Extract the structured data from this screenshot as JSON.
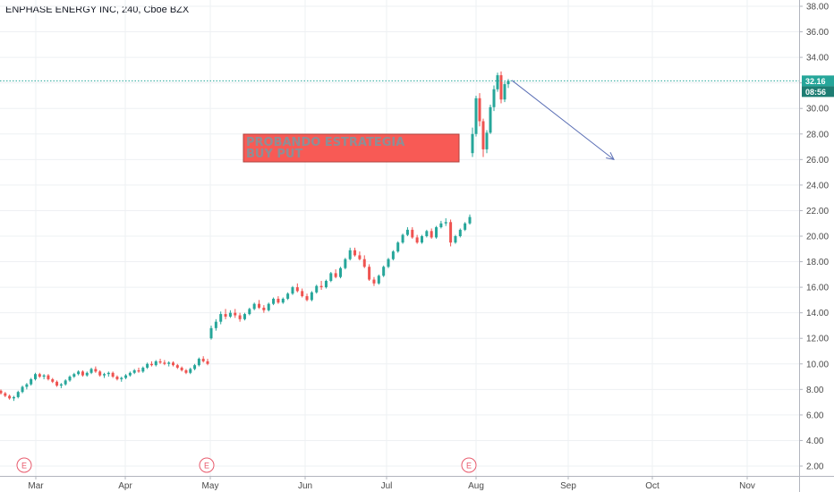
{
  "header": {
    "title": "ENPHASE ENERGY INC, 240, Cboe BZX"
  },
  "chart_data": {
    "type": "candlestick",
    "title": "ENPHASE ENERGY INC, 240, Cboe BZX",
    "ylim": [
      1.0,
      39.0
    ],
    "y_ticks": [
      "2.00",
      "4.00",
      "6.00",
      "8.00",
      "10.00",
      "12.00",
      "14.00",
      "16.00",
      "18.00",
      "20.00",
      "22.00",
      "24.00",
      "26.00",
      "28.00",
      "30.00",
      "32.00",
      "34.00",
      "36.00",
      "38.00"
    ],
    "x_ticks": [
      "Mar",
      "Apr",
      "May",
      "Jun",
      "Jul",
      "Aug",
      "Sep",
      "Oct",
      "Nov"
    ],
    "last_price": "32.16",
    "countdown": "08:56",
    "price_line_value": 32.16,
    "earnings_marker_label": "E",
    "earnings_markers": [
      "May",
      "Aug"
    ],
    "annotation": {
      "lines": [
        "PROBANDO ESTRATEGIA",
        "BUY PUT"
      ]
    },
    "arrow": {
      "from_value": 32.2,
      "to_value": 26.0
    },
    "colors": {
      "up": "#26a69a",
      "down": "#ef5350",
      "price_line": "#26a69a",
      "arrow": "#5b6fb5",
      "annotation_bg": "#f85a55"
    },
    "series": [
      {
        "values": [
          [
            7.9,
            8.0,
            7.6,
            7.7
          ],
          [
            7.7,
            7.8,
            7.4,
            7.5
          ],
          [
            7.5,
            7.6,
            7.2,
            7.3
          ],
          [
            7.3,
            7.5,
            7.1,
            7.4
          ],
          [
            7.4,
            7.9,
            7.3,
            7.8
          ],
          [
            7.8,
            8.3,
            7.7,
            8.2
          ],
          [
            8.2,
            8.5,
            8.0,
            8.4
          ],
          [
            8.4,
            8.9,
            8.3,
            8.8
          ],
          [
            8.8,
            9.3,
            8.7,
            9.2
          ],
          [
            9.2,
            9.3,
            8.9,
            9.0
          ],
          [
            9.0,
            9.2,
            8.8,
            9.1
          ],
          [
            9.1,
            9.2,
            8.7,
            8.8
          ],
          [
            8.8,
            8.9,
            8.5,
            8.6
          ],
          [
            8.6,
            8.7,
            8.2,
            8.3
          ],
          [
            8.3,
            8.5,
            8.1,
            8.4
          ],
          [
            8.4,
            8.8,
            8.3,
            8.7
          ],
          [
            8.7,
            9.1,
            8.6,
            9.0
          ],
          [
            9.0,
            9.3,
            8.9,
            9.2
          ],
          [
            9.2,
            9.5,
            9.1,
            9.4
          ],
          [
            9.4,
            9.5,
            9.0,
            9.1
          ],
          [
            9.1,
            9.4,
            9.0,
            9.3
          ],
          [
            9.3,
            9.7,
            9.2,
            9.6
          ],
          [
            9.6,
            9.8,
            9.3,
            9.4
          ],
          [
            9.4,
            9.5,
            9.0,
            9.1
          ],
          [
            9.1,
            9.3,
            8.9,
            9.2
          ],
          [
            9.2,
            9.4,
            9.0,
            9.3
          ],
          [
            9.3,
            9.4,
            8.9,
            9.0
          ],
          [
            9.0,
            9.1,
            8.7,
            8.8
          ],
          [
            8.8,
            9.0,
            8.6,
            8.9
          ],
          [
            8.9,
            9.2,
            8.8,
            9.1
          ],
          [
            9.1,
            9.4,
            9.0,
            9.3
          ],
          [
            9.3,
            9.6,
            9.2,
            9.5
          ],
          [
            9.5,
            9.7,
            9.3,
            9.4
          ],
          [
            9.4,
            9.8,
            9.3,
            9.7
          ],
          [
            9.7,
            10.1,
            9.6,
            10.0
          ],
          [
            10.0,
            10.2,
            9.8,
            9.9
          ],
          [
            9.9,
            10.3,
            9.8,
            10.2
          ],
          [
            10.2,
            10.4,
            10.0,
            10.1
          ],
          [
            10.1,
            10.3,
            9.9,
            10.0
          ],
          [
            10.0,
            10.2,
            9.8,
            10.1
          ],
          [
            10.1,
            10.2,
            9.8,
            9.9
          ],
          [
            9.9,
            10.0,
            9.6,
            9.7
          ],
          [
            9.7,
            9.8,
            9.4,
            9.5
          ],
          [
            9.5,
            9.6,
            9.2,
            9.3
          ],
          [
            9.3,
            9.7,
            9.2,
            9.6
          ],
          [
            9.6,
            10.0,
            9.5,
            9.9
          ],
          [
            9.9,
            10.5,
            9.8,
            10.4
          ],
          [
            10.4,
            10.6,
            10.1,
            10.2
          ],
          [
            10.2,
            10.4,
            9.9,
            10.0
          ],
          [
            12.0,
            13.0,
            11.9,
            12.8
          ],
          [
            12.8,
            13.5,
            12.6,
            13.3
          ],
          [
            13.3,
            14.1,
            13.1,
            13.9
          ],
          [
            13.9,
            14.3,
            13.5,
            13.7
          ],
          [
            13.7,
            14.2,
            13.6,
            14.0
          ],
          [
            14.0,
            14.3,
            13.6,
            13.8
          ],
          [
            13.8,
            14.0,
            13.3,
            13.5
          ],
          [
            13.5,
            14.0,
            13.4,
            13.9
          ],
          [
            13.9,
            14.4,
            13.8,
            14.3
          ],
          [
            14.3,
            14.8,
            14.2,
            14.7
          ],
          [
            14.7,
            15.0,
            14.3,
            14.4
          ],
          [
            14.4,
            14.6,
            14.0,
            14.2
          ],
          [
            14.2,
            14.8,
            14.1,
            14.7
          ],
          [
            14.7,
            15.2,
            14.6,
            15.1
          ],
          [
            15.1,
            15.3,
            14.7,
            14.8
          ],
          [
            14.8,
            15.2,
            14.7,
            15.1
          ],
          [
            15.1,
            15.6,
            15.0,
            15.5
          ],
          [
            15.5,
            16.1,
            15.4,
            16.0
          ],
          [
            16.0,
            16.3,
            15.6,
            15.7
          ],
          [
            15.7,
            15.9,
            15.2,
            15.3
          ],
          [
            15.3,
            15.5,
            14.9,
            15.0
          ],
          [
            15.0,
            15.7,
            14.9,
            15.6
          ],
          [
            15.6,
            16.2,
            15.5,
            16.1
          ],
          [
            16.1,
            16.5,
            15.8,
            16.0
          ],
          [
            16.0,
            16.6,
            15.9,
            16.5
          ],
          [
            16.5,
            17.2,
            16.4,
            17.1
          ],
          [
            17.1,
            17.4,
            16.7,
            16.8
          ],
          [
            16.8,
            17.6,
            16.7,
            17.5
          ],
          [
            17.5,
            18.3,
            17.4,
            18.2
          ],
          [
            18.2,
            19.1,
            18.1,
            18.9
          ],
          [
            18.9,
            19.1,
            18.4,
            18.5
          ],
          [
            18.5,
            18.8,
            18.1,
            18.2
          ],
          [
            18.2,
            18.5,
            17.5,
            17.6
          ],
          [
            17.6,
            17.8,
            16.5,
            16.6
          ],
          [
            16.6,
            16.8,
            16.1,
            16.3
          ],
          [
            16.3,
            17.0,
            16.2,
            16.9
          ],
          [
            16.9,
            17.7,
            16.8,
            17.6
          ],
          [
            17.6,
            18.3,
            17.5,
            18.2
          ],
          [
            18.2,
            18.9,
            18.1,
            18.8
          ],
          [
            18.8,
            19.6,
            18.7,
            19.5
          ],
          [
            19.5,
            20.2,
            19.4,
            20.1
          ],
          [
            20.1,
            20.7,
            20.0,
            20.5
          ],
          [
            20.5,
            20.7,
            19.8,
            19.9
          ],
          [
            19.9,
            20.1,
            19.4,
            19.5
          ],
          [
            19.5,
            20.1,
            19.4,
            20.0
          ],
          [
            20.0,
            20.5,
            19.9,
            20.4
          ],
          [
            20.4,
            20.6,
            19.8,
            19.9
          ],
          [
            19.9,
            20.8,
            19.8,
            20.7
          ],
          [
            20.7,
            21.2,
            20.6,
            21.0
          ],
          [
            21.0,
            21.4,
            20.8,
            21.1
          ],
          [
            21.1,
            21.3,
            19.2,
            19.5
          ],
          [
            19.5,
            20.1,
            19.4,
            20.0
          ],
          [
            20.0,
            20.6,
            19.9,
            20.5
          ],
          [
            20.5,
            21.1,
            20.4,
            21.0
          ],
          [
            21.0,
            21.7,
            20.9,
            21.5
          ],
          [
            26.5,
            28.5,
            26.2,
            28.0
          ],
          [
            28.0,
            31.0,
            27.8,
            30.8
          ],
          [
            30.8,
            31.2,
            28.6,
            29.0
          ],
          [
            29.0,
            29.2,
            26.2,
            26.8
          ],
          [
            26.8,
            28.3,
            26.5,
            28.1
          ],
          [
            28.1,
            30.3,
            28.0,
            30.1
          ],
          [
            30.1,
            31.8,
            29.8,
            31.5
          ],
          [
            31.5,
            32.8,
            31.3,
            32.6
          ],
          [
            32.6,
            32.9,
            30.4,
            30.7
          ],
          [
            30.7,
            32.1,
            30.5,
            31.9
          ],
          [
            31.9,
            32.3,
            31.6,
            32.16
          ]
        ]
      }
    ]
  }
}
